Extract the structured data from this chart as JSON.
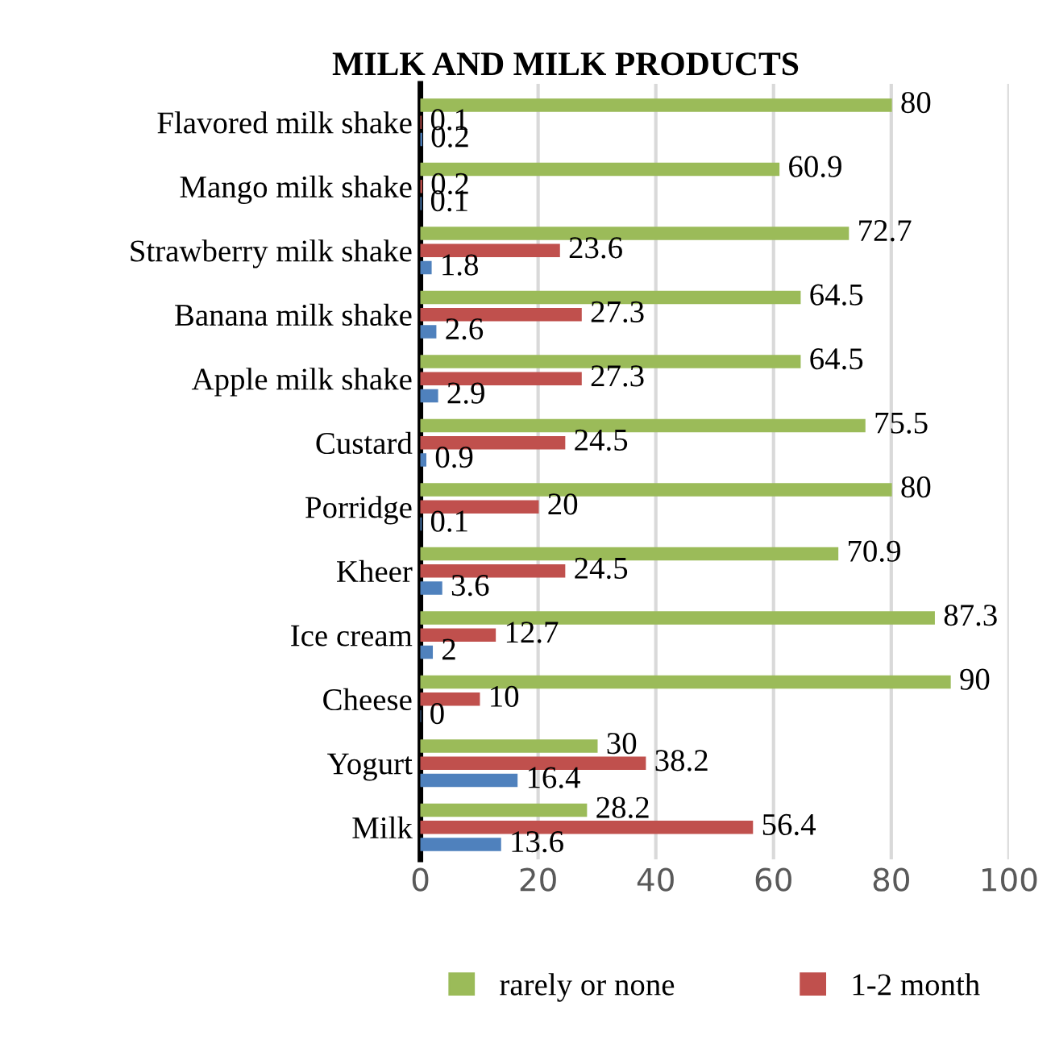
{
  "chart_data": {
    "type": "bar",
    "orientation": "horizontal",
    "title": "MILK AND MILK PRODUCTS",
    "categories": [
      "Flavored milk shake",
      "Mango milk shake",
      "Strawberry milk shake",
      "Banana milk shake",
      "Apple milk shake",
      "Custard",
      "Porridge",
      "Kheer",
      "Ice cream",
      "Cheese",
      "Yogurt",
      "Milk"
    ],
    "series": [
      {
        "name": "rarely or none",
        "color": "#9bbb59",
        "values": [
          80,
          60.9,
          72.7,
          64.5,
          64.5,
          75.5,
          80,
          70.9,
          87.3,
          90,
          30,
          28.2
        ]
      },
      {
        "name": "1-2 month",
        "color": "#c0504d",
        "values": [
          0.1,
          0.2,
          23.6,
          27.3,
          27.3,
          24.5,
          20,
          24.5,
          12.7,
          10,
          38.2,
          56.4
        ]
      },
      {
        "color": "#4f81bd",
        "values": [
          0.2,
          0.1,
          1.8,
          2.6,
          2.9,
          0.9,
          0.1,
          3.6,
          2,
          0,
          16.4,
          13.6
        ]
      }
    ],
    "xlim": [
      0,
      100
    ],
    "xticks": [
      0,
      20,
      40,
      60,
      80,
      100
    ],
    "grid": "x",
    "legend": "bottom",
    "data_labels": true
  }
}
